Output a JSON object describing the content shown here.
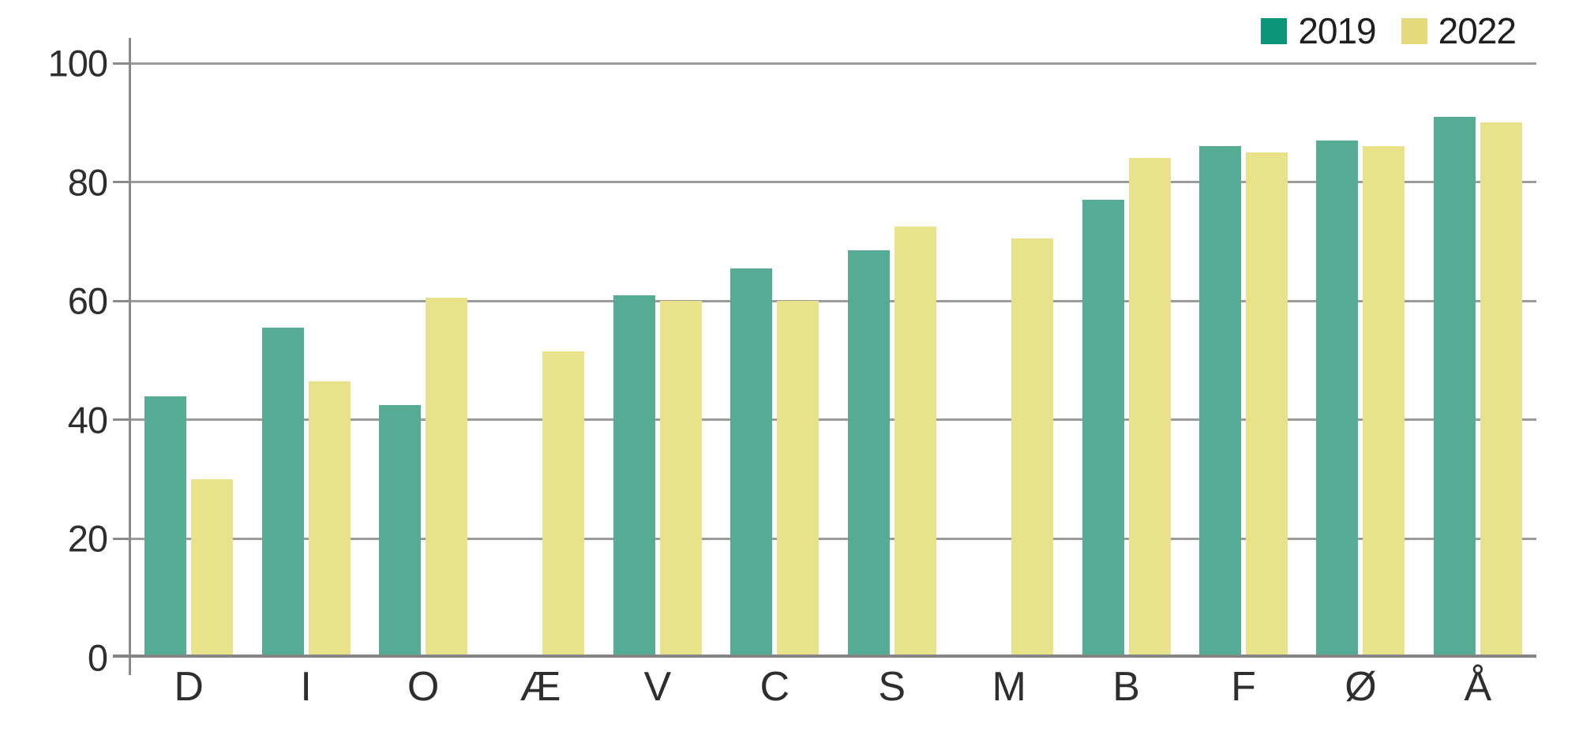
{
  "chart_data": {
    "type": "bar",
    "subtype": "grouped-vertical",
    "categories": [
      "D",
      "I",
      "O",
      "Æ",
      "V",
      "C",
      "S",
      "M",
      "B",
      "F",
      "Ø",
      "Å"
    ],
    "series": [
      {
        "name": "2019",
        "bar_color": "#55ab93",
        "legend_color": "#0c9578",
        "values": [
          44,
          55.5,
          42.5,
          null,
          61,
          65.5,
          68.5,
          null,
          77,
          86,
          87,
          91
        ]
      },
      {
        "name": "2022",
        "bar_color": "#e8e28b",
        "legend_color": "#e5da7c",
        "values": [
          30,
          46.5,
          60.5,
          51.5,
          60,
          60,
          72.5,
          70.5,
          84,
          85,
          86,
          90
        ]
      }
    ],
    "title": "",
    "xlabel": "",
    "ylabel": "",
    "ylim": [
      0,
      100
    ],
    "yticks": [
      0,
      20,
      40,
      60,
      80,
      100
    ],
    "grid": "horizontal",
    "legend_position": "top-right",
    "note_missing": "Series 2019 has no bar for categories Æ and M"
  },
  "colors": {
    "gridline": "#9b9b9b",
    "axis": "#8a8a8a",
    "text": "#2e2e2e",
    "background": "#ffffff"
  }
}
